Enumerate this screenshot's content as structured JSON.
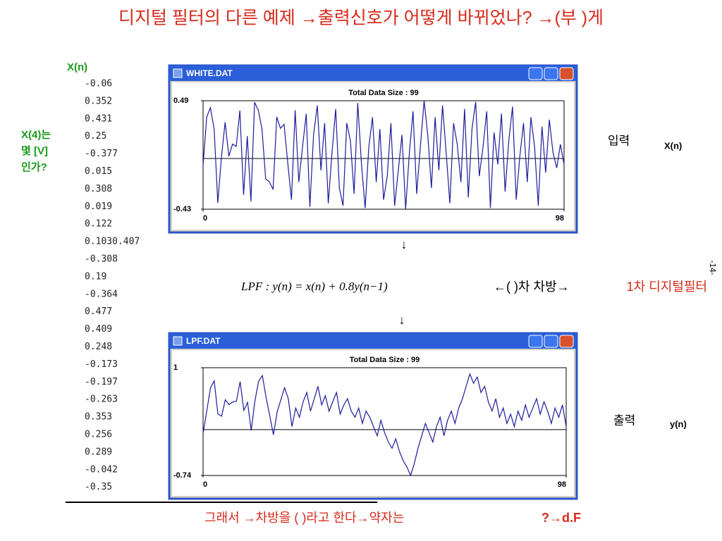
{
  "title": "디지털 필터의 다른 예제 →출력신호가 어떻게 바뀌었나? →(부          )게",
  "xn_header": "X(n)",
  "xn_list": [
    "-0.06",
    "0.352",
    "0.431",
    "0.25",
    "-0.377",
    "0.015",
    "0.308",
    "0.019",
    "0.122",
    "0.1030.407",
    "-0.308",
    "0.19",
    "-0.364",
    "0.477",
    "0.409",
    "0.248",
    "-0.173",
    "-0.197",
    "-0.263",
    "0.353",
    "0.256",
    "0.289",
    "-0.042",
    "-0.35"
  ],
  "question": [
    "X(4)는",
    "몇 [V]",
    "인가?"
  ],
  "input_label": "입력",
  "input_symbol": "X(n)",
  "output_label": "출력",
  "output_symbol": "y(n)",
  "arrow_down": "↓",
  "equation": "LPF : y(n) = x(n) + 0.8y(n−1)",
  "order_note": "←(   )차 차방→",
  "order_answer": "1차 디지털필터",
  "page_number": "-14-",
  "bottom_note": "그래서 →차방을 (            )라고 한다→약자는 ",
  "bottom_answer": "?→d.F",
  "chart_data": [
    {
      "type": "line",
      "title": "WHITE.DAT",
      "subtitle": "Total Data Size :  99",
      "color": "#1c1c9c",
      "xlim": [
        0,
        98
      ],
      "xticks": [
        0,
        98
      ],
      "ylim": [
        -0.43,
        0.49
      ],
      "yticks": [
        -0.43,
        0.49
      ],
      "zero_line": true,
      "values": [
        -0.06,
        0.352,
        0.431,
        0.25,
        -0.377,
        0.015,
        0.308,
        0.019,
        0.122,
        0.103,
        0.407,
        -0.308,
        0.19,
        -0.364,
        0.477,
        0.409,
        0.248,
        -0.173,
        -0.197,
        -0.263,
        0.353,
        0.256,
        0.289,
        -0.042,
        -0.35,
        0.41,
        -0.2,
        0.1,
        0.38,
        -0.41,
        0.2,
        0.45,
        -0.1,
        0.3,
        -0.38,
        0.05,
        0.42,
        -0.25,
        -0.4,
        0.3,
        0.15,
        -0.3,
        0.47,
        -0.05,
        -0.42,
        0.1,
        0.35,
        -0.2,
        0.25,
        -0.35,
        -0.15,
        0.3,
        -0.4,
        -0.1,
        0.2,
        -0.43,
        0.05,
        0.4,
        -0.3,
        0.1,
        0.49,
        0.2,
        -0.25,
        0.35,
        -0.1,
        0.45,
        0.05,
        -0.38,
        0.3,
        0.12,
        -0.2,
        0.42,
        -0.33,
        0.25,
        0.48,
        -0.15,
        0.1,
        0.4,
        -0.42,
        0.22,
        -0.05,
        0.38,
        -0.28,
        0.15,
        0.44,
        -0.35,
        0.02,
        0.3,
        -0.2,
        0.35,
        0.1,
        -0.4,
        0.27,
        -0.12,
        0.33,
        0.05,
        -0.08,
        0.12,
        -0.05
      ]
    },
    {
      "type": "line",
      "title": "LPF.DAT",
      "subtitle": "Total Data Size :  99",
      "color": "#1c1c9c",
      "xlim": [
        0,
        98
      ],
      "xticks": [
        0,
        98
      ],
      "ylim": [
        -0.74,
        1
      ],
      "yticks": [
        -0.74,
        1
      ],
      "zero_line": true,
      "values": [
        -0.06,
        0.304,
        0.674,
        0.789,
        0.254,
        0.218,
        0.483,
        0.405,
        0.446,
        0.46,
        0.775,
        0.312,
        0.44,
        -0.012,
        0.467,
        0.783,
        0.874,
        0.526,
        0.224,
        -0.084,
        0.286,
        0.485,
        0.677,
        0.5,
        0.05,
        0.35,
        0.2,
        0.45,
        0.6,
        0.3,
        0.5,
        0.7,
        0.4,
        0.55,
        0.3,
        0.45,
        0.6,
        0.25,
        0.4,
        0.5,
        0.3,
        0.2,
        0.35,
        0.1,
        0.3,
        0.2,
        0.05,
        -0.1,
        0.15,
        -0.05,
        -0.2,
        -0.3,
        -0.15,
        -0.35,
        -0.5,
        -0.6,
        -0.74,
        -0.55,
        -0.3,
        -0.1,
        0.1,
        -0.05,
        -0.2,
        0.05,
        0.2,
        -0.1,
        0.15,
        0.3,
        0.1,
        0.35,
        0.5,
        0.7,
        0.9,
        0.75,
        0.85,
        0.6,
        0.7,
        0.45,
        0.3,
        0.5,
        0.2,
        0.35,
        0.1,
        0.25,
        0.05,
        0.3,
        0.15,
        0.4,
        0.2,
        0.35,
        0.5,
        0.25,
        0.45,
        0.3,
        0.1,
        0.35,
        0.2,
        0.4,
        0.05
      ]
    }
  ]
}
